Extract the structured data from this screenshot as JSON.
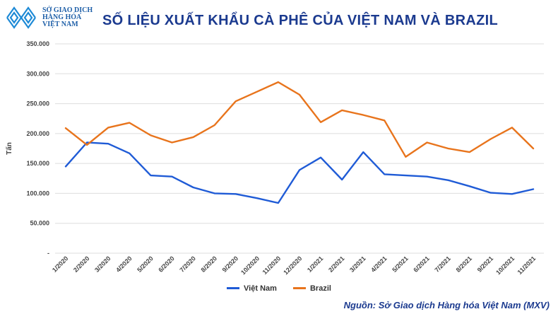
{
  "logo": {
    "line1": "SỞ GIAO DỊCH",
    "line2": "HÀNG HÓA",
    "line3": "VIỆT NAM"
  },
  "colors": {
    "vietnam": "#1f5bd6",
    "brazil": "#e8741c",
    "grid": "#dddddd",
    "title": "#1b3a8f"
  },
  "source": "Nguồn: Sở Giao dịch Hàng hóa Việt Nam (MXV)",
  "chart_data": {
    "type": "line",
    "title": "SỐ LIỆU XUẤT KHẨU CÀ PHÊ CỦA VIỆT NAM VÀ BRAZIL",
    "xlabel": "",
    "ylabel": "Tấn",
    "ylim": [
      0,
      350000
    ],
    "yticks": [
      0,
      50000,
      100000,
      150000,
      200000,
      250000,
      300000,
      350000
    ],
    "ytick_labels": [
      "-",
      "50.000",
      "100.000",
      "150.000",
      "200.000",
      "250.000",
      "300.000",
      "350.000"
    ],
    "grid": true,
    "legend_position": "bottom",
    "categories": [
      "1/2020",
      "2/2020",
      "3/2020",
      "4/2020",
      "5/2020",
      "6/2020",
      "7/2020",
      "8/2020",
      "9/2020",
      "10/2020",
      "11/2020",
      "12/2020",
      "1/2021",
      "2/2021",
      "3/2021",
      "4/2021",
      "5/2021",
      "6/2021",
      "7/2021",
      "8/2021",
      "9/2021",
      "10/2021",
      "11/2021"
    ],
    "series": [
      {
        "name": "Việt Nam",
        "color": "#1f5bd6",
        "values": [
          145000,
          185000,
          183000,
          167000,
          130000,
          128000,
          110000,
          100000,
          99000,
          92000,
          84000,
          139000,
          160000,
          123000,
          169000,
          132000,
          130000,
          128000,
          122000,
          112000,
          101000,
          99000,
          107000
        ]
      },
      {
        "name": "Brazil",
        "color": "#e8741c",
        "values": [
          209000,
          181000,
          210000,
          218000,
          197000,
          185000,
          194000,
          214000,
          254000,
          270000,
          286000,
          265000,
          219000,
          239000,
          231000,
          222000,
          161000,
          185000,
          175000,
          169000,
          191000,
          210000,
          175000
        ]
      }
    ]
  }
}
